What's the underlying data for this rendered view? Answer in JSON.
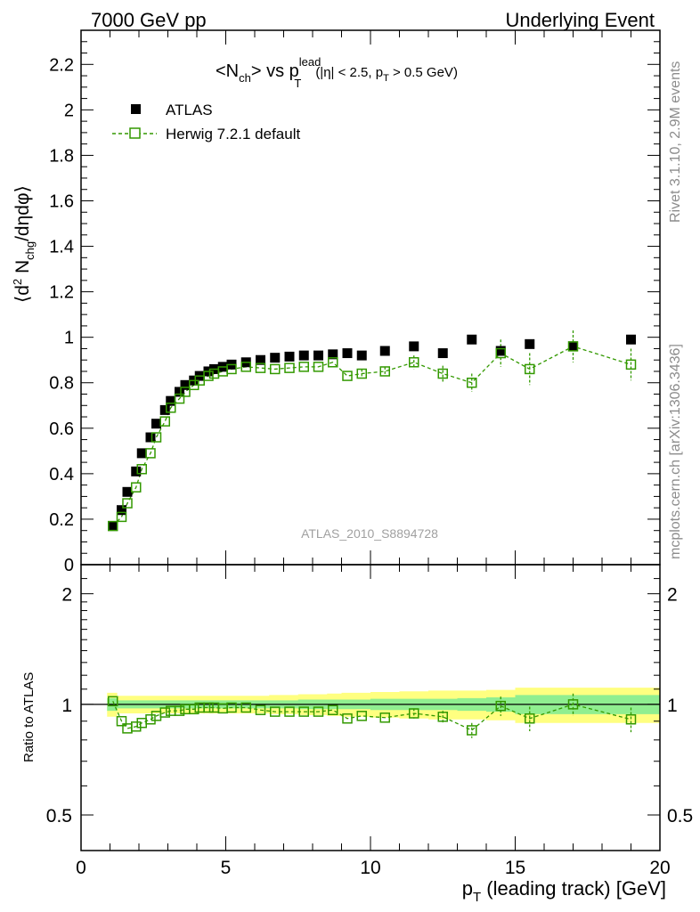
{
  "header": {
    "left": "7000 GeV pp",
    "right": "Underlying Event"
  },
  "side_labels": {
    "rivet": "Rivet 3.1.10,  2.9M events",
    "mcplots": "mcplots.cern.ch [arXiv:1306.3436]"
  },
  "watermark": "ATLAS_2010_S8894728",
  "colors": {
    "data": "#000000",
    "mc": "#339900",
    "band_inner": "#90ee90",
    "band_outer": "#ffff80"
  },
  "chart_data": [
    {
      "type": "scatter",
      "panel": "main",
      "title": "<N_ch> vs p_T^lead (|η| < 2.5, p_T > 0.5 GeV)",
      "title_parts": {
        "main": "<N",
        "main_sub": "ch",
        "vs": "> vs p",
        "sup": "lead",
        "sub": "T",
        "cut1": "(|η| < 2.5, p",
        "cut_sub": "T",
        "cut2": " > 0.5 GeV)"
      },
      "ylabel": "⟨d² N_chg/dηdφ⟩",
      "ylabel_parts": {
        "a": "⟨d",
        "sup": "2",
        "b": " N",
        "sub": "chg",
        "c": "/dηdφ⟩"
      },
      "xlim": [
        0,
        20
      ],
      "ylim": [
        0,
        2.35
      ],
      "yticks": [
        "0",
        "0.2",
        "0.4",
        "0.6",
        "0.8",
        "1",
        "1.2",
        "1.4",
        "1.6",
        "1.8",
        "2",
        "2.2"
      ],
      "legend_position": "top-left",
      "series": [
        {
          "name": "ATLAS",
          "marker": "filled-square",
          "x": [
            1.1,
            1.4,
            1.6,
            1.9,
            2.1,
            2.4,
            2.6,
            2.9,
            3.1,
            3.4,
            3.6,
            3.9,
            4.1,
            4.4,
            4.6,
            4.9,
            5.2,
            5.7,
            6.2,
            6.7,
            7.2,
            7.7,
            8.2,
            8.7,
            9.2,
            9.7,
            10.5,
            11.5,
            12.5,
            13.5,
            14.5,
            15.5,
            17.0,
            19.0
          ],
          "y": [
            0.17,
            0.24,
            0.32,
            0.41,
            0.49,
            0.56,
            0.62,
            0.68,
            0.72,
            0.76,
            0.79,
            0.81,
            0.83,
            0.85,
            0.86,
            0.87,
            0.88,
            0.89,
            0.9,
            0.91,
            0.915,
            0.92,
            0.92,
            0.925,
            0.93,
            0.92,
            0.94,
            0.96,
            0.93,
            0.99,
            0.94,
            0.97,
            0.96,
            0.99
          ]
        },
        {
          "name": "Herwig 7.2.1 default",
          "marker": "open-square-dashed",
          "x": [
            1.1,
            1.4,
            1.6,
            1.9,
            2.1,
            2.4,
            2.6,
            2.9,
            3.1,
            3.4,
            3.6,
            3.9,
            4.1,
            4.4,
            4.6,
            4.9,
            5.2,
            5.7,
            6.2,
            6.7,
            7.2,
            7.7,
            8.2,
            8.7,
            9.2,
            9.7,
            10.5,
            11.5,
            12.5,
            13.5,
            14.5,
            15.5,
            17.0,
            19.0
          ],
          "y": [
            0.17,
            0.21,
            0.27,
            0.34,
            0.42,
            0.49,
            0.56,
            0.63,
            0.69,
            0.73,
            0.76,
            0.79,
            0.81,
            0.83,
            0.84,
            0.85,
            0.86,
            0.87,
            0.865,
            0.86,
            0.865,
            0.87,
            0.87,
            0.89,
            0.83,
            0.84,
            0.85,
            0.89,
            0.84,
            0.8,
            0.93,
            0.86,
            0.96,
            0.88
          ],
          "err": [
            0.005,
            0.005,
            0.005,
            0.005,
            0.005,
            0.005,
            0.005,
            0.005,
            0.005,
            0.005,
            0.005,
            0.005,
            0.006,
            0.006,
            0.007,
            0.008,
            0.008,
            0.009,
            0.01,
            0.01,
            0.012,
            0.012,
            0.014,
            0.015,
            0.016,
            0.02,
            0.02,
            0.03,
            0.035,
            0.04,
            0.06,
            0.07,
            0.07,
            0.07
          ]
        }
      ]
    },
    {
      "type": "scatter",
      "panel": "ratio",
      "ylabel": "Ratio to ATLAS",
      "xlabel": "p_T (leading track) [GeV]",
      "xlabel_parts": {
        "a": "p",
        "sub": "T",
        "b": " (leading track) [GeV]"
      },
      "xlim": [
        0,
        20
      ],
      "xticks": [
        "0",
        "5",
        "10",
        "15",
        "20"
      ],
      "ylim": [
        0.4,
        2.4
      ],
      "log_y": true,
      "yticks": [
        "0.5",
        "1",
        "2"
      ],
      "reference_line": 1,
      "band_x": [
        0.9,
        1.25,
        1.5,
        2,
        2.5,
        3,
        3.5,
        4,
        4.5,
        5,
        5.5,
        6,
        6.5,
        7,
        7.5,
        8,
        8.5,
        9,
        9.5,
        10,
        11,
        12,
        13,
        14,
        15,
        16,
        18,
        20
      ],
      "band_inner": [
        0.04,
        0.025,
        0.025,
        0.025,
        0.025,
        0.025,
        0.025,
        0.025,
        0.025,
        0.025,
        0.025,
        0.025,
        0.025,
        0.025,
        0.03,
        0.03,
        0.03,
        0.03,
        0.03,
        0.035,
        0.035,
        0.035,
        0.04,
        0.045,
        0.06,
        0.06,
        0.06,
        0.06
      ],
      "band_outer": [
        0.075,
        0.055,
        0.055,
        0.055,
        0.055,
        0.055,
        0.055,
        0.055,
        0.055,
        0.055,
        0.055,
        0.055,
        0.06,
        0.06,
        0.065,
        0.065,
        0.07,
        0.075,
        0.075,
        0.08,
        0.085,
        0.09,
        0.09,
        0.095,
        0.11,
        0.11,
        0.11,
        0.11
      ],
      "series": [
        {
          "name": "Herwig 7.2.1 default",
          "x": [
            1.1,
            1.4,
            1.6,
            1.9,
            2.1,
            2.4,
            2.6,
            2.9,
            3.1,
            3.4,
            3.6,
            3.9,
            4.1,
            4.4,
            4.6,
            4.9,
            5.2,
            5.7,
            6.2,
            6.7,
            7.2,
            7.7,
            8.2,
            8.7,
            9.2,
            9.7,
            10.5,
            11.5,
            12.5,
            13.5,
            14.5,
            15.5,
            17.0,
            19.0
          ],
          "y": [
            1.02,
            0.9,
            0.86,
            0.87,
            0.89,
            0.91,
            0.93,
            0.95,
            0.96,
            0.96,
            0.97,
            0.97,
            0.98,
            0.98,
            0.98,
            0.975,
            0.98,
            0.98,
            0.965,
            0.955,
            0.955,
            0.955,
            0.955,
            0.965,
            0.915,
            0.93,
            0.92,
            0.945,
            0.925,
            0.85,
            0.99,
            0.915,
            1.0,
            0.91
          ],
          "err": [
            0.005,
            0.005,
            0.005,
            0.005,
            0.005,
            0.005,
            0.005,
            0.005,
            0.005,
            0.005,
            0.005,
            0.005,
            0.006,
            0.006,
            0.007,
            0.008,
            0.008,
            0.009,
            0.01,
            0.01,
            0.012,
            0.012,
            0.014,
            0.015,
            0.016,
            0.02,
            0.02,
            0.03,
            0.035,
            0.04,
            0.06,
            0.07,
            0.07,
            0.07
          ]
        }
      ]
    }
  ]
}
